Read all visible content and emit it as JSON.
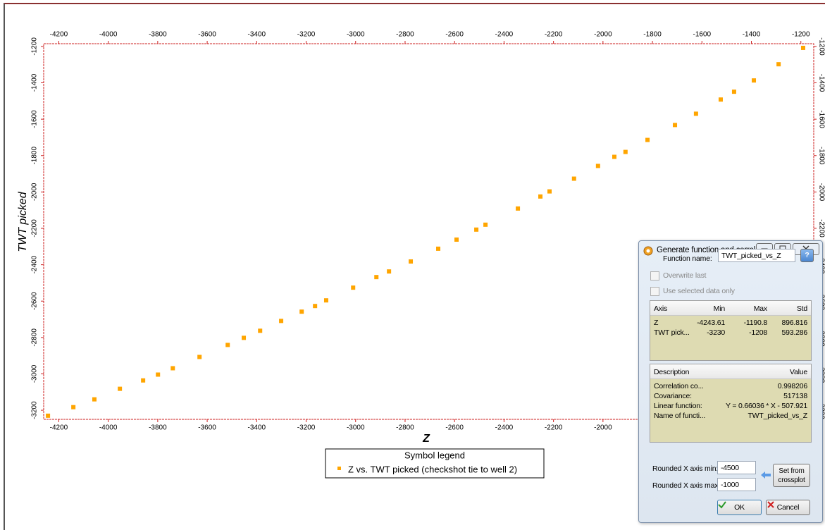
{
  "chart_data": {
    "type": "scatter",
    "x_label": "Z",
    "y_label": "TWT picked",
    "legend_title": "Symbol legend",
    "x": [
      -4243.61,
      -4141,
      -4056,
      -3953,
      -3859,
      -3799,
      -3739,
      -3631,
      -3517,
      -3452,
      -3386,
      -3301,
      -3218,
      -3164,
      -3119,
      -3010,
      -2916,
      -2865,
      -2777,
      -2666,
      -2592,
      -2512,
      -2475,
      -2344,
      -2253,
      -2216,
      -2117,
      -2020,
      -1954,
      -1909,
      -1820,
      -1709,
      -1624,
      -1524,
      -1470,
      -1390,
      -1290,
      -1190.8
    ],
    "series": [
      {
        "name": "Z vs. TWT picked (checkshot tie to well 2)",
        "color": "#ffa500",
        "values": [
          -3230,
          -3183,
          -3140,
          -3082,
          -3036,
          -3004,
          -2969,
          -2907,
          -2841,
          -2802,
          -2763,
          -2709,
          -2658,
          -2627,
          -2596,
          -2526,
          -2468,
          -2437,
          -2382,
          -2312,
          -2262,
          -2207,
          -2180,
          -2091,
          -2025,
          -1997,
          -1927,
          -1857,
          -1807,
          -1780,
          -1714,
          -1632,
          -1570,
          -1492,
          -1449,
          -1387,
          -1298,
          -1208
        ]
      }
    ],
    "xlim": [
      -4261,
      -1148
    ],
    "ylim": [
      -3250,
      -1185
    ],
    "xticks": [
      -4200,
      -4000,
      -3800,
      -3600,
      -3400,
      -3200,
      -3000,
      -2800,
      -2600,
      -2400,
      -2200,
      -2000,
      -1800,
      -1600,
      -1400,
      -1200
    ],
    "yticks": [
      -3200,
      -3000,
      -2800,
      -2600,
      -2400,
      -2200,
      -2000,
      -1800,
      -1600,
      -1400,
      -1200
    ],
    "frame_color": "#cc2222"
  },
  "dialog": {
    "title": "Generate function and correl...",
    "function_name_label": "Function name:",
    "function_name": "TWT_picked_vs_Z",
    "help": "?",
    "checkboxes": [
      "Overwrite last",
      "Use selected data only"
    ],
    "axis_table": {
      "header": [
        "Axis",
        "Min",
        "Max",
        "Std"
      ],
      "rows": [
        [
          "Z",
          -4243.61,
          -1190.8,
          896.816
        ],
        [
          "TWT pick...",
          -3230,
          -1208,
          593.286
        ]
      ]
    },
    "stats_table": {
      "header": [
        "Description",
        "Value"
      ],
      "rows": [
        [
          "Correlation co...",
          0.998206
        ],
        [
          "Covariance:",
          517138
        ],
        [
          "Linear function:",
          "Y = 0.66036 * X - 507.921"
        ],
        [
          "Name of functi...",
          "TWT_picked_vs_Z"
        ]
      ]
    },
    "rounded_min_label": "Rounded X axis min:",
    "rounded_min": "-4500",
    "rounded_max_label": "Rounded X axis max:",
    "rounded_max": "-1000",
    "set_button": "Set from crossplot",
    "ok": "OK",
    "cancel": "Cancel"
  }
}
